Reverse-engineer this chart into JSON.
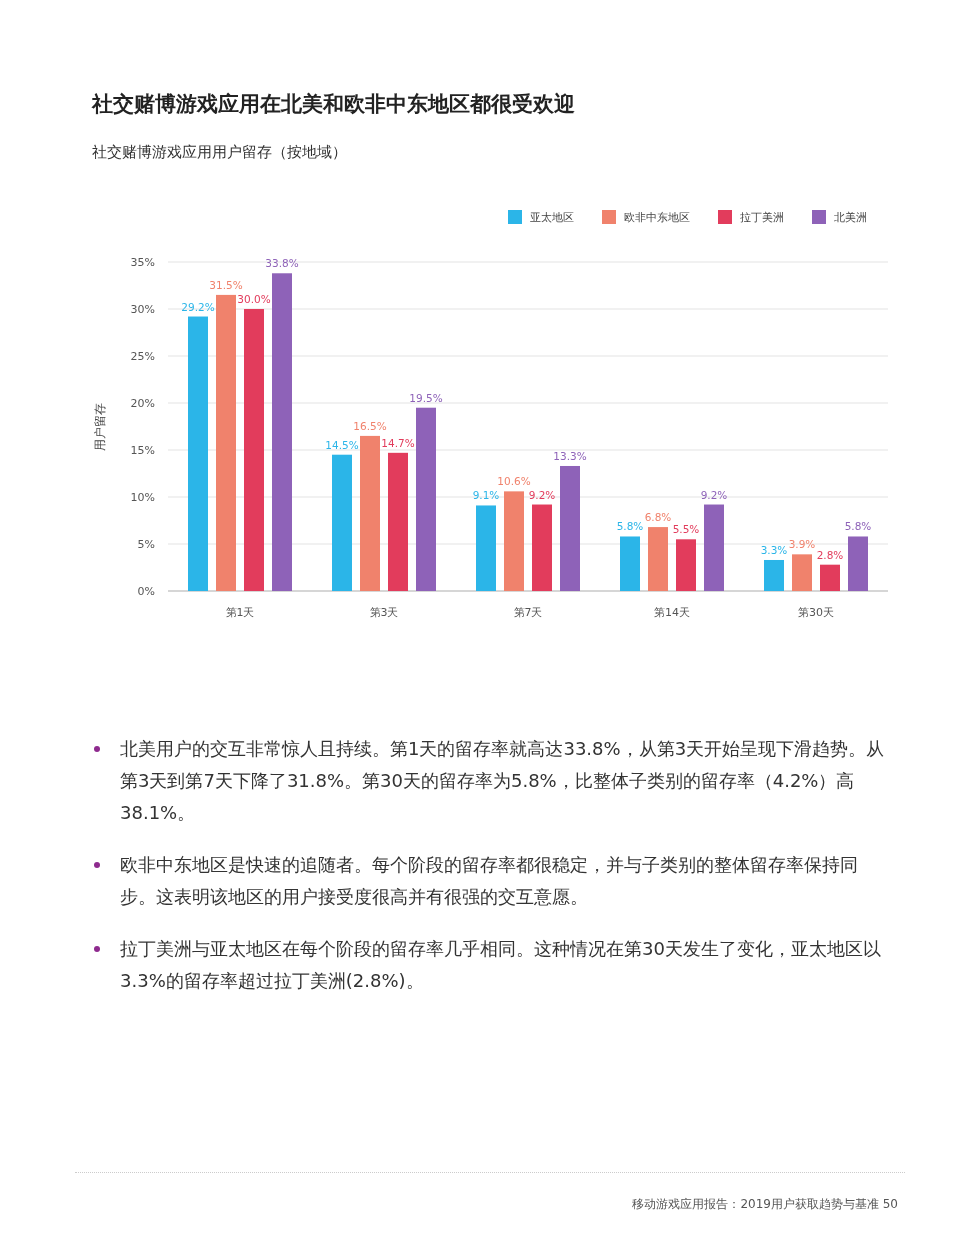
{
  "chart_data": {
    "type": "bar",
    "title": "社交赌博游戏应用在北美和欧非中东地区都很受欢迎",
    "subtitle": "社交赌博游戏应用用户留存（按地域）",
    "ylabel": "用户留存",
    "categories": [
      "第1天",
      "第3天",
      "第7天",
      "第14天",
      "第30天"
    ],
    "series": [
      {
        "name": "亚太地区",
        "color": "#2bb5e8",
        "values": [
          29.2,
          14.5,
          9.1,
          5.8,
          3.3
        ],
        "value_labels": [
          "29.2%",
          "14.5%",
          "9.1%",
          "5.8%",
          "3.3%"
        ]
      },
      {
        "name": "欧非中东地区",
        "color": "#f0826c",
        "values": [
          31.5,
          16.5,
          10.6,
          6.8,
          3.9
        ],
        "value_labels": [
          "31.5%",
          "16.5%",
          "10.6%",
          "6.8%",
          "3.9%"
        ]
      },
      {
        "name": "拉丁美洲",
        "color": "#e23c5c",
        "values": [
          30.0,
          14.7,
          9.2,
          5.5,
          2.8
        ],
        "value_labels": [
          "30.0%",
          "14.7%",
          "9.2%",
          "5.5%",
          "2.8%"
        ]
      },
      {
        "name": "北美洲",
        "color": "#8e62b8",
        "values": [
          33.8,
          19.5,
          13.3,
          9.2,
          5.8
        ],
        "value_labels": [
          "33.8%",
          "19.5%",
          "13.3%",
          "9.2%",
          "5.8%"
        ]
      }
    ],
    "ylim": [
      0,
      35
    ],
    "yticks": [
      {
        "value": 0,
        "label": "0%"
      },
      {
        "value": 5,
        "label": "5%"
      },
      {
        "value": 10,
        "label": "10%"
      },
      {
        "value": 15,
        "label": "15%"
      },
      {
        "value": 20,
        "label": "20%"
      },
      {
        "value": 25,
        "label": "25%"
      },
      {
        "value": 30,
        "label": "30%"
      },
      {
        "value": 35,
        "label": "35%"
      }
    ],
    "grid": "y",
    "legend": "top right",
    "annotations": [
      "北美用户的交互非常惊人且持续。第1天的留存率就高达33.8%，从第3天开始呈现下滑趋势。从第3天到第7天下降了31.8%。第30天的留存率为5.8%，比整体子类别的留存率（4.2%）高38.1%。",
      "欧非中东地区是快速的追随者。每个阶段的留存率都很稳定，并与子类别的整体留存率保持同步。这表明该地区的用户接受度很高并有很强的交互意愿。",
      "拉丁美洲与亚太地区在每个阶段的留存率几乎相同。这种情况在第30天发生了变化，亚太地区以3.3%的留存率超过拉丁美洲(2.8%)。",
      "移动游戏应用报告：2019用户获取趋势与基准  50"
    ]
  }
}
